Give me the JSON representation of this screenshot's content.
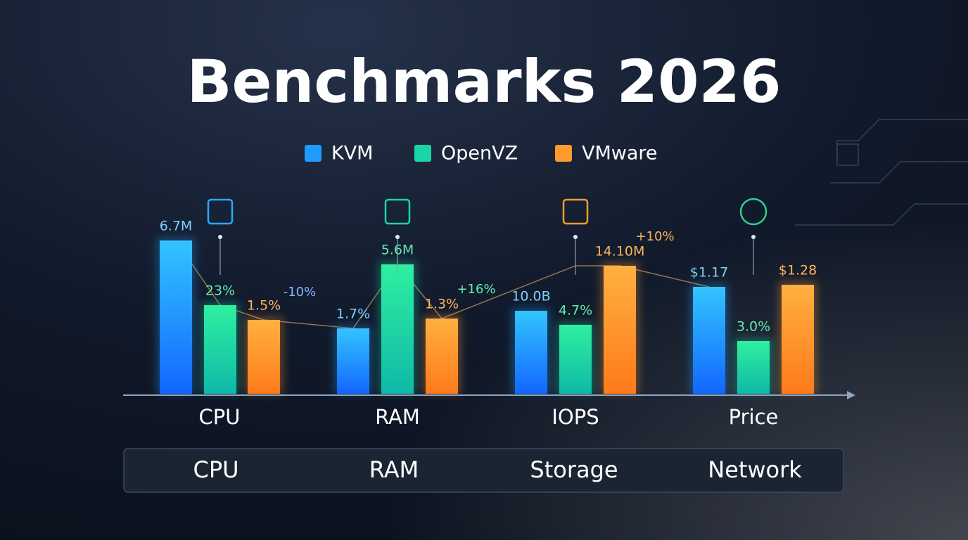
{
  "header": {
    "title": "Benchmarks 2026"
  },
  "legend": [
    {
      "name": "KVM",
      "color": "#1e9bff"
    },
    {
      "name": "OpenVZ",
      "color": "#18d6a6"
    },
    {
      "name": "VMware",
      "color": "#ff9a2e"
    }
  ],
  "groups": [
    {
      "name": "CPU",
      "bars": [
        {
          "label": "6.7M"
        },
        {
          "label": "23%"
        },
        {
          "label": "1.5%"
        }
      ],
      "annotation": "-10%"
    },
    {
      "name": "RAM",
      "bars": [
        {
          "label": "1.7%"
        },
        {
          "label": "5.6M"
        },
        {
          "label": "1.3%"
        }
      ],
      "annotation": "+16%"
    },
    {
      "name": "IOPS",
      "bars": [
        {
          "label": "10.0B"
        },
        {
          "label": "4.7%"
        },
        {
          "label": "14.10M"
        }
      ],
      "annotation": "+10%"
    },
    {
      "name": "Price",
      "bars": [
        {
          "label": "$1.17"
        },
        {
          "label": "3.0%"
        },
        {
          "label": "$1.28"
        }
      ]
    }
  ],
  "tabs": [
    "CPU",
    "RAM",
    "Storage",
    "Network"
  ]
}
